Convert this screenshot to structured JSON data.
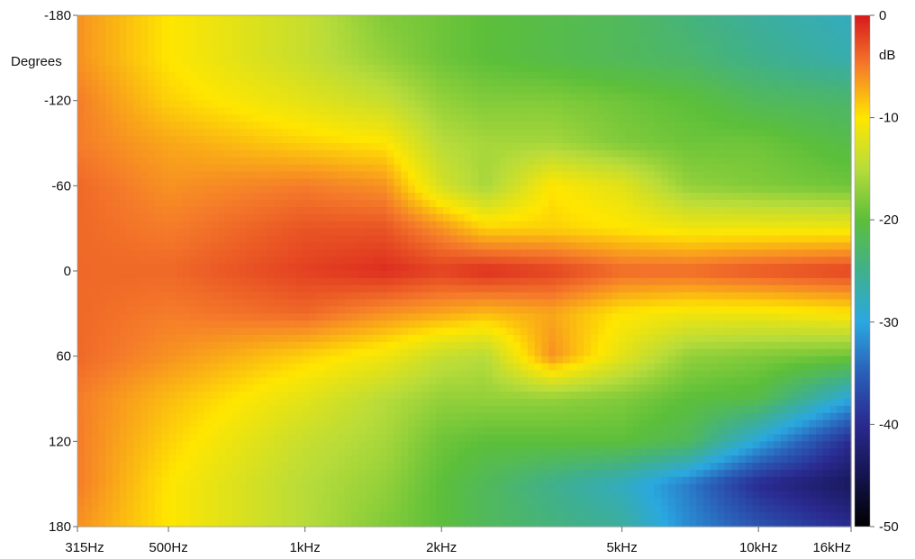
{
  "chart_data": {
    "type": "heatmap",
    "title": "",
    "xlabel": "",
    "ylabel": "Degrees",
    "x_scale": "log",
    "xlim": [
      315,
      16000
    ],
    "ylim": [
      -180,
      180
    ],
    "y_inverted": true,
    "x_ticks": [
      {
        "value": 315,
        "label": "315Hz"
      },
      {
        "value": 500,
        "label": "500Hz"
      },
      {
        "value": 1000,
        "label": "1kHz"
      },
      {
        "value": 2000,
        "label": "2kHz"
      },
      {
        "value": 5000,
        "label": "5kHz"
      },
      {
        "value": 10000,
        "label": "10kHz"
      },
      {
        "value": 16000,
        "label": "16kHz"
      }
    ],
    "y_ticks": [
      {
        "value": -180,
        "label": "-180"
      },
      {
        "value": -120,
        "label": "-120"
      },
      {
        "value": -60,
        "label": "-60"
      },
      {
        "value": 0,
        "label": "0"
      },
      {
        "value": 60,
        "label": "60"
      },
      {
        "value": 120,
        "label": "120"
      },
      {
        "value": 180,
        "label": "180"
      }
    ],
    "colorbar": {
      "unit": "dB",
      "range": [
        -50,
        0
      ],
      "ticks": [
        {
          "value": 0,
          "label": "0"
        },
        {
          "value": -10,
          "label": "-10"
        },
        {
          "value": -20,
          "label": "-20"
        },
        {
          "value": -30,
          "label": "-30"
        },
        {
          "value": -40,
          "label": "-40"
        },
        {
          "value": -50,
          "label": "-50"
        }
      ],
      "colors": [
        {
          "value": 0,
          "color": "#d7191c"
        },
        {
          "value": -5,
          "color": "#f57c2a"
        },
        {
          "value": -10,
          "color": "#ffe600"
        },
        {
          "value": -15,
          "color": "#b8dc3a"
        },
        {
          "value": -20,
          "color": "#5cbf3a"
        },
        {
          "value": -25,
          "color": "#40b08c"
        },
        {
          "value": -30,
          "color": "#2aa8e0"
        },
        {
          "value": -35,
          "color": "#2a5fb8"
        },
        {
          "value": -40,
          "color": "#2a2a90"
        },
        {
          "value": -45,
          "color": "#141450"
        },
        {
          "value": -50,
          "color": "#000000"
        }
      ]
    },
    "frequencies_hz": [
      315,
      500,
      1000,
      1500,
      2000,
      2500,
      3500,
      5000,
      7000,
      10000,
      16000
    ],
    "angles_deg": [
      -180,
      -150,
      -120,
      -90,
      -60,
      -30,
      0,
      30,
      60,
      90,
      120,
      150,
      180
    ],
    "values_db": [
      [
        -6,
        -10,
        -14,
        -18,
        -19,
        -20,
        -21,
        -22,
        -24,
        -26,
        -28
      ],
      [
        -6,
        -10,
        -14,
        -17,
        -19,
        -20,
        -21,
        -22,
        -23,
        -25,
        -27
      ],
      [
        -5,
        -9,
        -12,
        -14,
        -17,
        -18,
        -18,
        -19,
        -20,
        -22,
        -23
      ],
      [
        -5,
        -7,
        -9,
        -10,
        -15,
        -16,
        -16,
        -18,
        -19,
        -19,
        -21
      ],
      [
        -4,
        -6,
        -5,
        -6,
        -13,
        -16,
        -10,
        -12,
        -17,
        -18,
        -19
      ],
      [
        -4,
        -5,
        -3,
        -3,
        -6,
        -9,
        -9,
        -10,
        -11,
        -11,
        -11
      ],
      [
        -4,
        -4,
        -2,
        -1,
        -2,
        -1,
        -2,
        -4,
        -4,
        -3,
        -2
      ],
      [
        -4,
        -5,
        -4,
        -6,
        -7,
        -8,
        -7,
        -10,
        -11,
        -11,
        -10
      ],
      [
        -4,
        -6,
        -9,
        -11,
        -14,
        -15,
        -6,
        -12,
        -17,
        -18,
        -19
      ],
      [
        -5,
        -8,
        -12,
        -15,
        -17,
        -17,
        -17,
        -18,
        -20,
        -21,
        -30
      ],
      [
        -5,
        -9,
        -14,
        -16,
        -19,
        -20,
        -20,
        -20,
        -22,
        -30,
        -40
      ],
      [
        -5,
        -10,
        -15,
        -17,
        -20,
        -22,
        -25,
        -28,
        -33,
        -40,
        -44
      ],
      [
        -6,
        -10,
        -15,
        -18,
        -20,
        -22,
        -24,
        -26,
        -32,
        -36,
        -40
      ]
    ]
  }
}
